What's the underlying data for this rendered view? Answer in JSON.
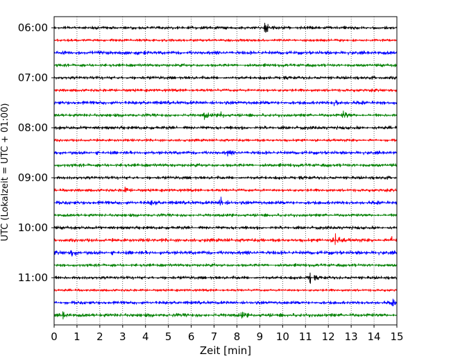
{
  "chart_data": {
    "type": "line",
    "subtype": "helicorder",
    "xlabel": "Zeit  [min]",
    "ylabel": "UTC (Lokalzeit = UTC + 01:00)",
    "xlim": [
      0,
      15
    ],
    "x_ticks": [
      "0",
      "1",
      "2",
      "3",
      "4",
      "5",
      "6",
      "7",
      "8",
      "9",
      "10",
      "11",
      "12",
      "13",
      "14",
      "15"
    ],
    "y_tick_labels": [
      "06:00",
      "07:00",
      "08:00",
      "09:00",
      "10:00",
      "11:00"
    ],
    "grid": "vertical dotted lines at each minute",
    "trace_interval_minutes": 15,
    "trace_colors": [
      "#000000",
      "#ff0000",
      "#0000ff",
      "#008000"
    ],
    "traces": [
      {
        "start": "06:00",
        "color": "#000000",
        "amp": 2.5,
        "events": [
          {
            "t": 9.25,
            "amp": 10
          }
        ]
      },
      {
        "start": "06:15",
        "color": "#ff0000",
        "amp": 2.2,
        "events": []
      },
      {
        "start": "06:30",
        "color": "#0000ff",
        "amp": 3.0,
        "events": []
      },
      {
        "start": "06:45",
        "color": "#008000",
        "amp": 2.4,
        "events": []
      },
      {
        "start": "07:00",
        "color": "#000000",
        "amp": 2.6,
        "events": []
      },
      {
        "start": "07:15",
        "color": "#ff0000",
        "amp": 2.4,
        "events": []
      },
      {
        "start": "07:30",
        "color": "#0000ff",
        "amp": 2.8,
        "events": [
          {
            "t": 12.3,
            "amp": 5
          }
        ]
      },
      {
        "start": "07:45",
        "color": "#008000",
        "amp": 2.5,
        "events": [
          {
            "t": 6.6,
            "amp": 6
          },
          {
            "t": 7.3,
            "amp": 5
          },
          {
            "t": 12.7,
            "amp": 7
          }
        ]
      },
      {
        "start": "08:00",
        "color": "#000000",
        "amp": 2.7,
        "events": []
      },
      {
        "start": "08:15",
        "color": "#ff0000",
        "amp": 2.2,
        "events": []
      },
      {
        "start": "08:30",
        "color": "#0000ff",
        "amp": 2.9,
        "events": [
          {
            "t": 7.6,
            "amp": 4
          }
        ]
      },
      {
        "start": "08:45",
        "color": "#008000",
        "amp": 2.6,
        "events": []
      },
      {
        "start": "09:00",
        "color": "#000000",
        "amp": 2.6,
        "events": []
      },
      {
        "start": "09:15",
        "color": "#ff0000",
        "amp": 2.4,
        "events": [
          {
            "t": 3.1,
            "amp": 4
          }
        ]
      },
      {
        "start": "09:30",
        "color": "#0000ff",
        "amp": 2.8,
        "events": [
          {
            "t": 4.3,
            "amp": 4
          },
          {
            "t": 7.3,
            "amp": 8
          }
        ]
      },
      {
        "start": "09:45",
        "color": "#008000",
        "amp": 2.4,
        "events": []
      },
      {
        "start": "10:00",
        "color": "#000000",
        "amp": 2.6,
        "events": []
      },
      {
        "start": "10:15",
        "color": "#ff0000",
        "amp": 2.8,
        "events": [
          {
            "t": 12.3,
            "amp": 20
          },
          {
            "t": 14.8,
            "amp": 6
          }
        ]
      },
      {
        "start": "10:30",
        "color": "#0000ff",
        "amp": 3.2,
        "events": [
          {
            "t": 0.8,
            "amp": 5
          }
        ]
      },
      {
        "start": "10:45",
        "color": "#008000",
        "amp": 2.4,
        "events": []
      },
      {
        "start": "11:00",
        "color": "#000000",
        "amp": 2.6,
        "events": [
          {
            "t": 11.2,
            "amp": 10
          }
        ]
      },
      {
        "start": "11:15",
        "color": "#ff0000",
        "amp": 2.0,
        "events": []
      },
      {
        "start": "11:30",
        "color": "#0000ff",
        "amp": 2.6,
        "events": [
          {
            "t": 14.8,
            "amp": 4
          }
        ]
      },
      {
        "start": "11:45",
        "color": "#008000",
        "amp": 2.8,
        "events": [
          {
            "t": 0.4,
            "amp": 6
          },
          {
            "t": 8.2,
            "amp": 5
          }
        ]
      }
    ]
  }
}
